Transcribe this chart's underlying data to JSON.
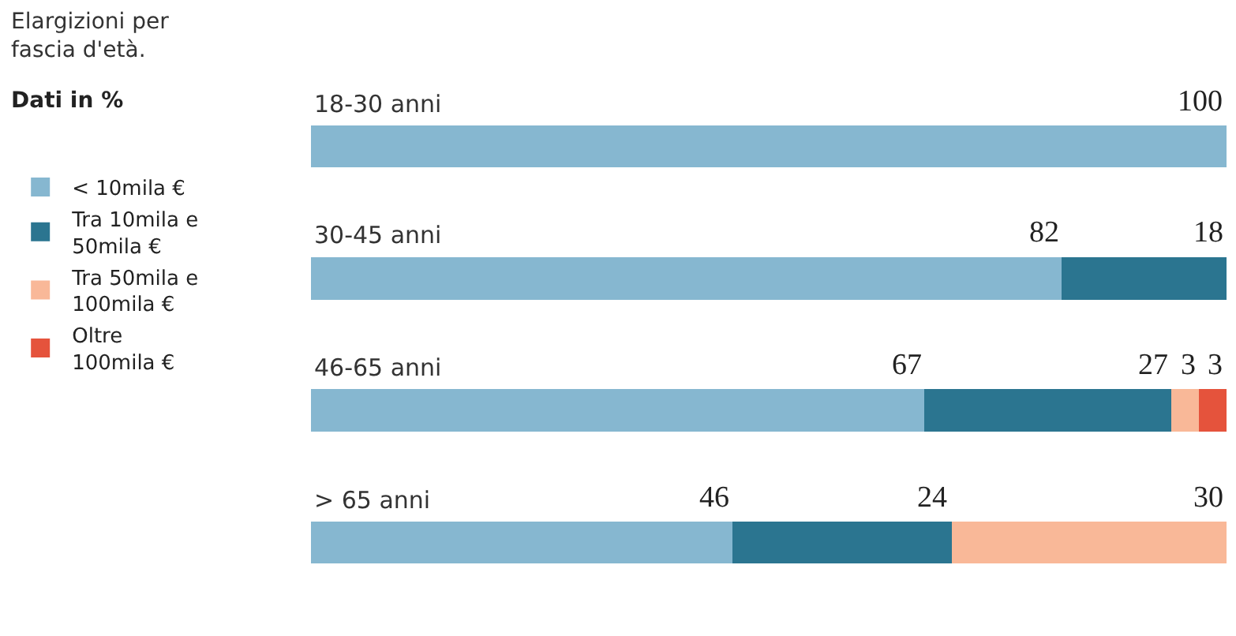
{
  "chart_data": {
    "type": "bar",
    "orientation": "horizontal",
    "stacked": true,
    "title": "Elargizioni per fascia d'età.",
    "subtitle": "Dati in %",
    "categories": [
      "18-30 anni",
      "30-45 anni",
      "46-65 anni",
      "> 65 anni"
    ],
    "series": [
      {
        "name": "< 10mila €",
        "color": "#86b7d0",
        "values": [
          100,
          82,
          67,
          46
        ]
      },
      {
        "name": "Tra 10mila e 50mila €",
        "color": "#2b7590",
        "values": [
          null,
          18,
          27,
          24
        ]
      },
      {
        "name": "Tra 50mila e 100mila €",
        "color": "#f9b898",
        "values": [
          null,
          null,
          3,
          30
        ]
      },
      {
        "name": "Oltre 100mila €",
        "color": "#e5533c",
        "values": [
          null,
          null,
          3,
          null
        ]
      }
    ],
    "xlim": [
      0,
      100
    ],
    "data_labels": true,
    "legend": "left",
    "tick_labels": false,
    "grid": false
  }
}
